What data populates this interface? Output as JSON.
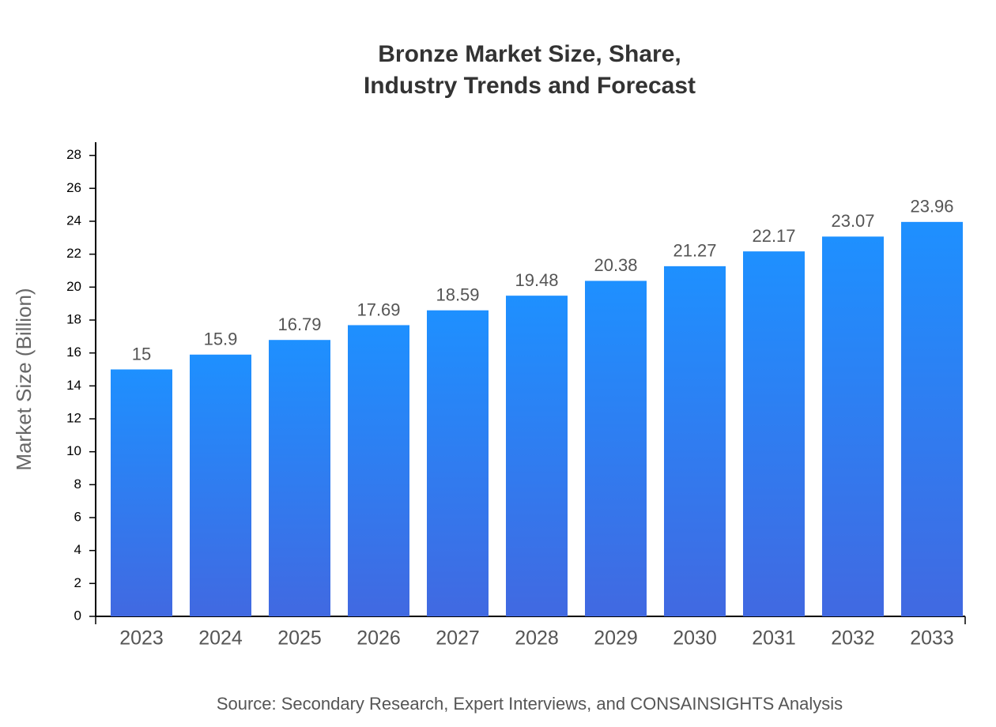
{
  "chart_data": {
    "type": "bar",
    "title": [
      "Bronze Market Size, Share,",
      "Industry Trends and Forecast"
    ],
    "y_label": "Market Size (Billion)",
    "source": "Source: Secondary Research, Expert Interviews, and CONSAINSIGHTS Analysis",
    "categories": [
      "2023",
      "2024",
      "2025",
      "2026",
      "2027",
      "2028",
      "2029",
      "2030",
      "2031",
      "2032",
      "2033"
    ],
    "values": [
      15,
      15.9,
      16.79,
      17.69,
      18.59,
      19.48,
      20.38,
      21.27,
      22.17,
      23.07,
      23.96
    ],
    "color": [
      "#1E90FF",
      "#4169E1"
    ],
    "ylim": [
      0,
      28.8
    ],
    "yticks": [
      0,
      2,
      4,
      6,
      8,
      10,
      12,
      14,
      16,
      18,
      20,
      22,
      24,
      26,
      28
    ]
  }
}
